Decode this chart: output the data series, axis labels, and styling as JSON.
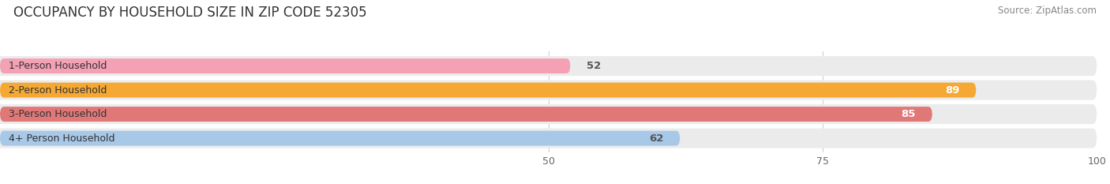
{
  "title": "OCCUPANCY BY HOUSEHOLD SIZE IN ZIP CODE 52305",
  "source_text": "Source: ZipAtlas.com",
  "categories": [
    "1-Person Household",
    "2-Person Household",
    "3-Person Household",
    "4+ Person Household"
  ],
  "values": [
    52,
    89,
    85,
    62
  ],
  "bar_colors": [
    "#f4a0b5",
    "#f5a833",
    "#e07878",
    "#a8c8e8"
  ],
  "xlim": [
    0,
    100
  ],
  "xticks": [
    50,
    75,
    100
  ],
  "label_color_inside": [
    "#555555",
    "#ffffff",
    "#ffffff",
    "#555555"
  ],
  "figure_bg": "#ffffff",
  "bar_row_bg": "#ebebeb",
  "title_fontsize": 12,
  "source_fontsize": 8.5,
  "value_fontsize": 9.5,
  "cat_fontsize": 9,
  "tick_fontsize": 9
}
